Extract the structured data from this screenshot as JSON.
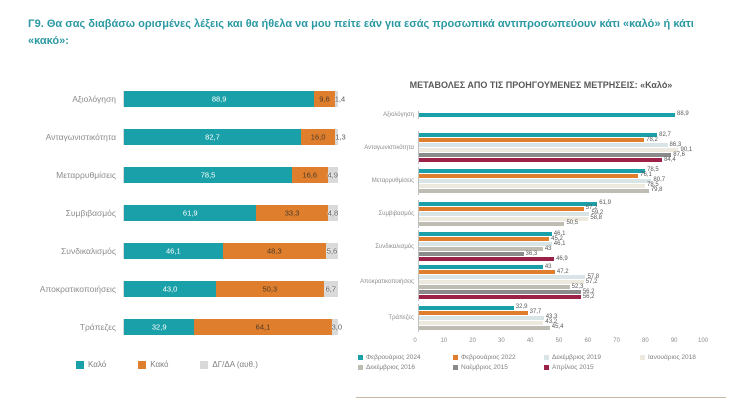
{
  "page": {
    "title": "Γ9. Θα σας διαβάσω ορισμένες λέξεις και θα ήθελα να μου πείτε εάν για εσάς προσωπικά αντιπροσωπεύουν κάτι «καλό» ή κάτι «κακό»:"
  },
  "colors": {
    "title_teal": "#2b99a3",
    "good_teal": "#1aa0a8",
    "bad_orange": "#df7e2c",
    "dk_gray": "#d9d9d9",
    "maroon": "#9c2146",
    "legend_text": "#7f7f7f"
  },
  "chart_data": [
    {
      "type": "bar",
      "subtype": "horizontal-stacked",
      "title": "",
      "xlabel": "",
      "ylabel": "",
      "xlim": [
        0,
        100
      ],
      "grid": false,
      "legend_position": "bottom",
      "categories": [
        "Αξιολόγηση",
        "Ανταγωνιστικότητα",
        "Μεταρρυθμίσεις",
        "Συμβιβασμός",
        "Συνδικαλισμός",
        "Αποκρατικοποιήσεις",
        "Τράπεζες"
      ],
      "series": [
        {
          "name": "Καλό",
          "color": "#1aa0a8",
          "values": [
            88.9,
            82.7,
            78.5,
            61.9,
            46.1,
            43.0,
            32.9
          ],
          "labels": [
            "88,9",
            "82,7",
            "78,5",
            "61,9",
            "46,1",
            "43,0",
            "32,9"
          ]
        },
        {
          "name": "Κακό",
          "color": "#df7e2c",
          "values": [
            9.6,
            16.0,
            16.6,
            33.3,
            48.3,
            50.3,
            64.1
          ],
          "labels": [
            "9,6",
            "16,0",
            "16,6",
            "33,3",
            "48,3",
            "50,3",
            "64,1"
          ]
        },
        {
          "name": "ΔΓ/ΔΑ (αυθ.)",
          "color": "#d9d9d9",
          "values": [
            1.4,
            1.3,
            4.9,
            4.8,
            5.6,
            6.7,
            3.0
          ],
          "labels": [
            "1,4",
            "1,3",
            "4,9",
            "4,8",
            "5,6",
            "6,7",
            "3,0"
          ]
        }
      ]
    },
    {
      "type": "bar",
      "subtype": "horizontal-grouped",
      "title": "ΜΕΤΑΒΟΛΕΣ ΑΠΟ ΤΙΣ ΠΡΟΗΓΟΥΜΕΝΕΣ ΜΕΤΡΗΣΕΙΣ: «Καλό»",
      "xlabel": "",
      "ylabel": "",
      "xlim": [
        0,
        100
      ],
      "x_ticks": [
        0,
        10,
        20,
        30,
        40,
        50,
        60,
        70,
        80,
        90,
        100
      ],
      "grid": false,
      "legend_position": "bottom",
      "categories": [
        "Αξιολόγηση",
        "Ανταγωνιστικότητα",
        "Μεταρρυθμίσεις",
        "Συμβιβασμός",
        "Συνδικαλισμός",
        "Αποκρατικοποιήσεις",
        "Τράπεζες"
      ],
      "series_legend": [
        {
          "name": "Φεβρουάριος 2024",
          "color": "#1aa0a8"
        },
        {
          "name": "Φεβρουάριος 2022",
          "color": "#df7e2c"
        },
        {
          "name": "Δεκέμβριος 2019",
          "color": "#d8e4e6"
        },
        {
          "name": "Ιανουάριος 2018",
          "color": "#ede9df"
        },
        {
          "name": "Δεκέμβριος 2016",
          "color": "#bfbcb4"
        },
        {
          "name": "Νοέμβριος 2015",
          "color": "#8a8a8a"
        },
        {
          "name": "Απρίλιος 2015",
          "color": "#9c2146"
        }
      ],
      "groups": [
        {
          "category": "Αξιολόγηση",
          "bars": [
            {
              "s": 0,
              "v": 88.9,
              "label": "88,9"
            }
          ]
        },
        {
          "category": "Ανταγωνιστικότητα",
          "bars": [
            {
              "s": 0,
              "v": 82.7,
              "label": "82,7"
            },
            {
              "s": 1,
              "v": 78.2,
              "label": "78,2"
            },
            {
              "s": 2,
              "v": 86.3,
              "label": "86,3"
            },
            {
              "s": 3,
              "v": 90.1,
              "label": "90,1"
            },
            {
              "s": 5,
              "v": 87.6,
              "label": "87,6"
            },
            {
              "s": 6,
              "v": 84.4,
              "label": "84,4"
            }
          ]
        },
        {
          "category": "Μεταρρυθμίσεις",
          "bars": [
            {
              "s": 0,
              "v": 78.5,
              "label": "78,5"
            },
            {
              "s": 1,
              "v": 76.1,
              "label": "76,1"
            },
            {
              "s": 2,
              "v": 80.7,
              "label": "80,7"
            },
            {
              "s": 3,
              "v": 78.5,
              "label": "78,5"
            },
            {
              "s": 4,
              "v": 79.8,
              "label": "79,8"
            }
          ]
        },
        {
          "category": "Συμβιβασμός",
          "bars": [
            {
              "s": 0,
              "v": 61.9,
              "label": "61,9"
            },
            {
              "s": 1,
              "v": 57.2,
              "label": "57,2"
            },
            {
              "s": 2,
              "v": 59.2,
              "label": "59,2"
            },
            {
              "s": 3,
              "v": 58.8,
              "label": "58,8"
            },
            {
              "s": 4,
              "v": 50.5,
              "label": "50,5"
            }
          ]
        },
        {
          "category": "Συνδικαλισμός",
          "bars": [
            {
              "s": 0,
              "v": 46.1,
              "label": "46,1"
            },
            {
              "s": 1,
              "v": 45.2,
              "label": "45,2"
            },
            {
              "s": 2,
              "v": 46.1,
              "label": "46,1"
            },
            {
              "s": 4,
              "v": 43.0,
              "label": "43"
            },
            {
              "s": 5,
              "v": 36.3,
              "label": "36,3"
            },
            {
              "s": 6,
              "v": 46.9,
              "label": "46,9"
            }
          ]
        },
        {
          "category": "Αποκρατικοποιήσεις",
          "bars": [
            {
              "s": 0,
              "v": 43.0,
              "label": "43"
            },
            {
              "s": 1,
              "v": 47.2,
              "label": "47,2"
            },
            {
              "s": 2,
              "v": 57.8,
              "label": "57,8"
            },
            {
              "s": 3,
              "v": 57.2,
              "label": "57,2"
            },
            {
              "s": 4,
              "v": 52.3,
              "label": "52,3"
            },
            {
              "s": 5,
              "v": 56.2,
              "label": "56,2"
            },
            {
              "s": 6,
              "v": 56.2,
              "label": "56,2"
            }
          ]
        },
        {
          "category": "Τράπεζες",
          "bars": [
            {
              "s": 0,
              "v": 32.9,
              "label": "32,9"
            },
            {
              "s": 1,
              "v": 37.7,
              "label": "37,7"
            },
            {
              "s": 2,
              "v": 43.3,
              "label": "43,3"
            },
            {
              "s": 3,
              "v": 43.2,
              "label": "43,2"
            },
            {
              "s": 4,
              "v": 45.4,
              "label": "45,4"
            }
          ]
        }
      ]
    }
  ]
}
